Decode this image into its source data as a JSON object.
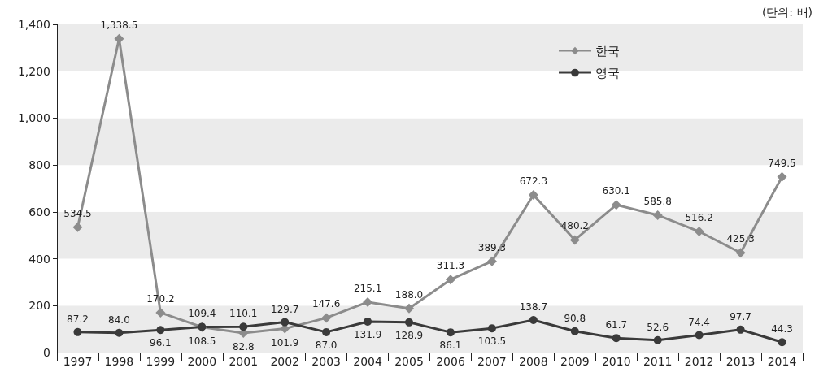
{
  "chart_data": {
    "type": "line",
    "categories": [
      "1997",
      "1998",
      "1999",
      "2000",
      "2001",
      "2002",
      "2003",
      "2004",
      "2005",
      "2006",
      "2007",
      "2008",
      "2009",
      "2010",
      "2011",
      "2012",
      "2013",
      "2014"
    ],
    "series": [
      {
        "name": "한국",
        "color": "#8c8c8c",
        "marker": "diamond",
        "values": [
          534.5,
          1338.5,
          170.2,
          108.5,
          82.8,
          101.9,
          147.6,
          215.1,
          188.0,
          311.3,
          389.3,
          672.3,
          480.2,
          630.1,
          585.8,
          516.2,
          425.3,
          749.5
        ],
        "value_labels": [
          "534.5",
          "1,338.5",
          "170.2",
          "108.5",
          "82.8",
          "101.9",
          "147.6",
          "215.1",
          "188.0",
          "311.3",
          "389.3",
          "672.3",
          "480.2",
          "630.1",
          "585.8",
          "516.2",
          "425.3",
          "749.5"
        ]
      },
      {
        "name": "영국",
        "color": "#3a3a3a",
        "marker": "circle",
        "values": [
          87.2,
          84.0,
          96.1,
          109.4,
          110.1,
          129.7,
          87.0,
          131.9,
          128.9,
          86.1,
          103.5,
          138.7,
          90.8,
          61.7,
          52.6,
          74.4,
          97.7,
          44.3
        ],
        "value_labels": [
          "87.2",
          "84.0",
          "96.1",
          "109.4",
          "110.1",
          "129.7",
          "87.0",
          "131.9",
          "128.9",
          "86.1",
          "103.5",
          "138.7",
          "90.8",
          "61.7",
          "52.6",
          "74.4",
          "97.7",
          "44.3"
        ]
      }
    ],
    "ylim": [
      0,
      1400
    ],
    "yticks": [
      {
        "value": 0,
        "label": "0"
      },
      {
        "value": 200,
        "label": "200"
      },
      {
        "value": 400,
        "label": "400"
      },
      {
        "value": 600,
        "label": "600"
      },
      {
        "value": 800,
        "label": "800"
      },
      {
        "value": 1000,
        "label": "1,000"
      },
      {
        "value": 1200,
        "label": "1,200"
      },
      {
        "value": 1400,
        "label": "1,400"
      }
    ],
    "legend": "top right",
    "line_style": "solid",
    "annotations": [
      "(단위: 배)"
    ]
  }
}
